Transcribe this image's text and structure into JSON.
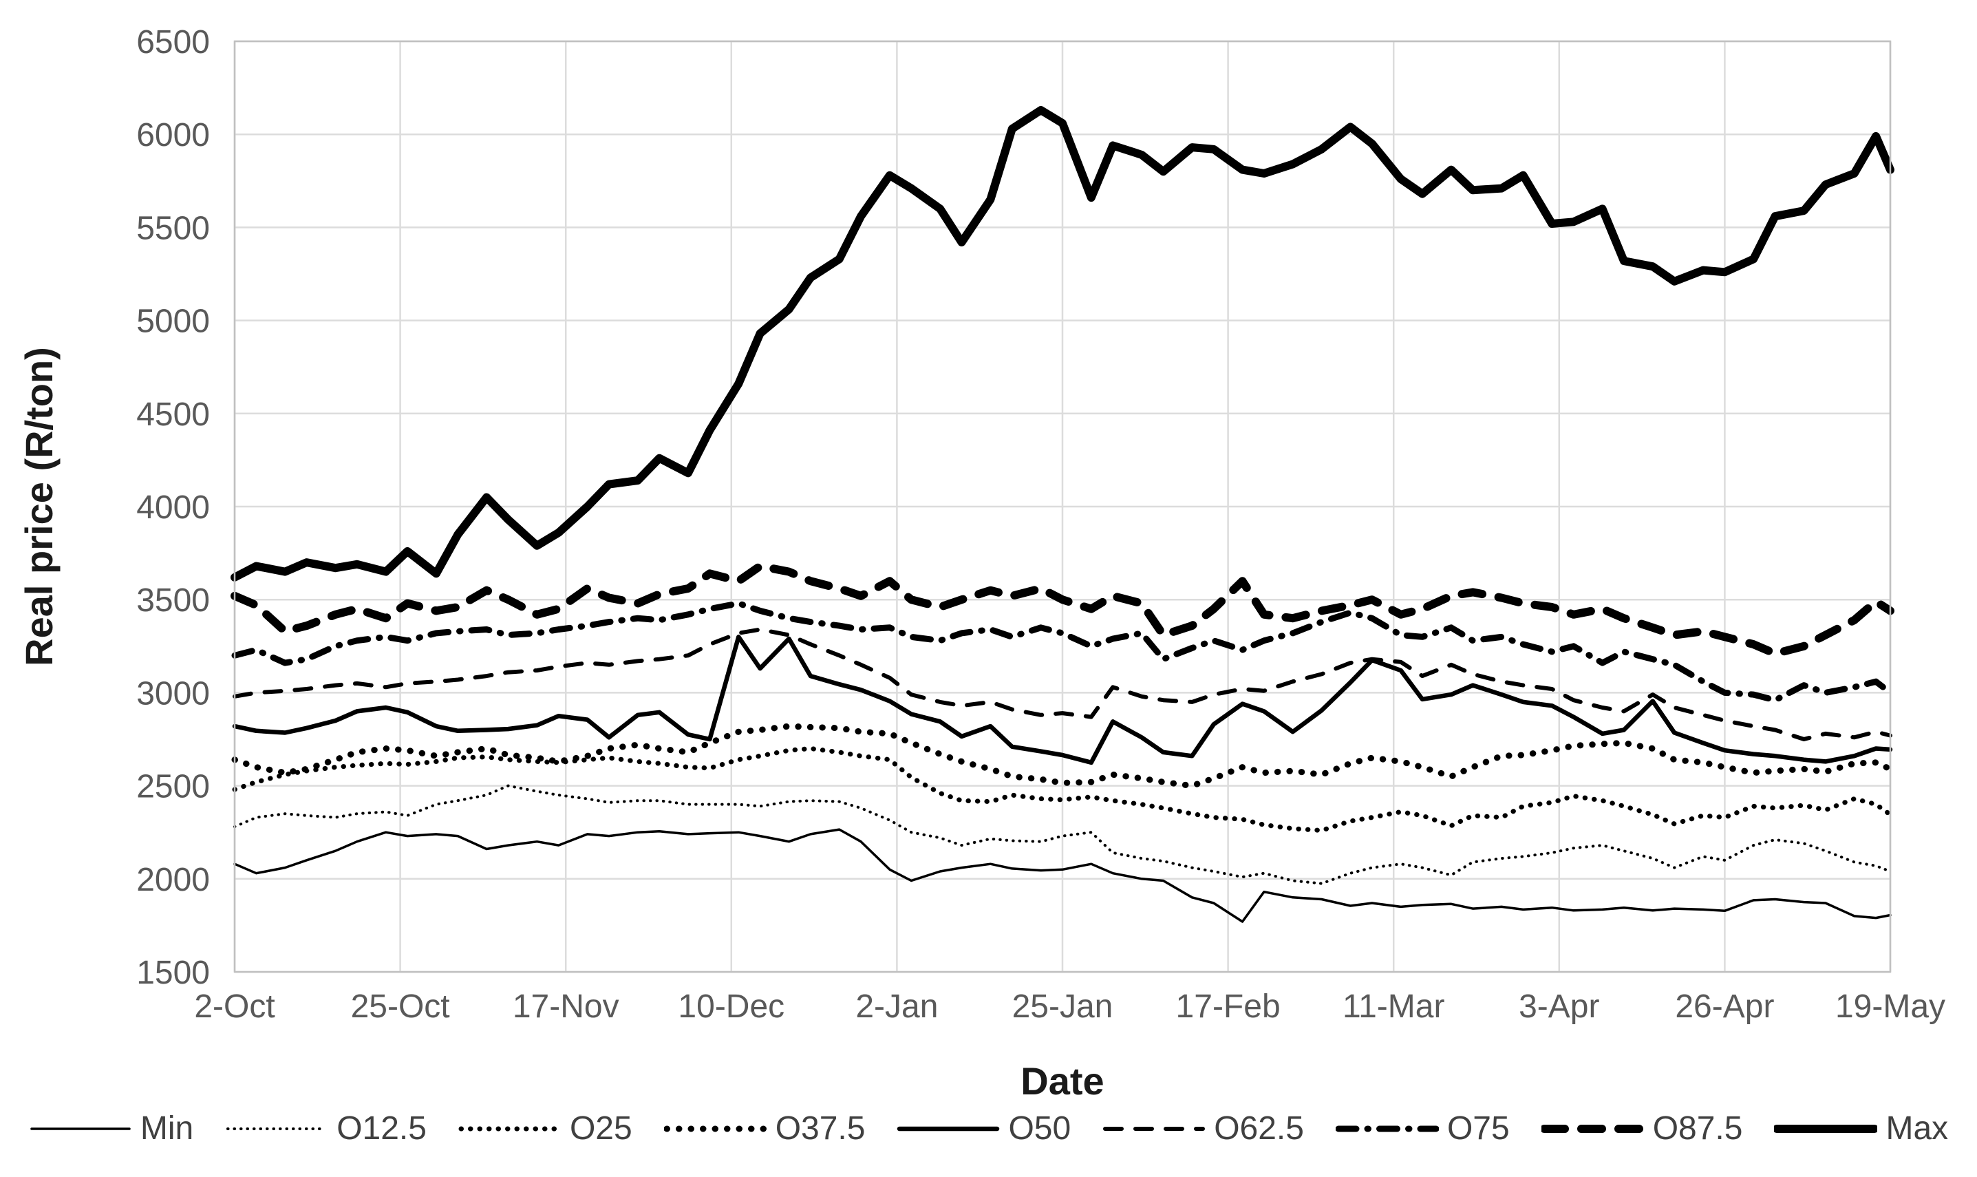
{
  "chart_data": {
    "type": "line",
    "xlabel": "Date",
    "ylabel": "Real price (R/ton)",
    "ylim": [
      1500,
      6500
    ],
    "ytick_step": 500,
    "ytick_labels": [
      "1500",
      "2000",
      "2500",
      "3000",
      "3500",
      "4000",
      "4500",
      "5000",
      "5500",
      "6000",
      "6500"
    ],
    "x_tick_labels": [
      "2-Oct",
      "25-Oct",
      "17-Nov",
      "10-Dec",
      "2-Jan",
      "25-Jan",
      "17-Feb",
      "11-Mar",
      "3-Apr",
      "26-Apr",
      "19-May"
    ],
    "x_tick_interval_days": 23,
    "x_total_days": 230,
    "grid": true,
    "legend_position": "bottom",
    "line_color": "#000000",
    "axis_text_color": "#595959",
    "title_text_color": "#1a1a1a",
    "legend_text_color": "#404040",
    "grid_color": "#dcdcdc",
    "border_color": "#c0c0c0",
    "x_dates": [
      "2-Oct",
      "5-Oct",
      "9-Oct",
      "12-Oct",
      "16-Oct",
      "19-Oct",
      "23-Oct",
      "26-Oct",
      "30-Oct",
      "2-Nov",
      "6-Nov",
      "9-Nov",
      "13-Nov",
      "16-Nov",
      "20-Nov",
      "23-Nov",
      "27-Nov",
      "30-Nov",
      "4-Dec",
      "7-Dec",
      "11-Dec",
      "14-Dec",
      "18-Dec",
      "21-Dec",
      "25-Dec",
      "28-Dec",
      "1-Jan",
      "4-Jan",
      "8-Jan",
      "11-Jan",
      "15-Jan",
      "18-Jan",
      "22-Jan",
      "25-Jan",
      "29-Jan",
      "1-Feb",
      "5-Feb",
      "8-Feb",
      "12-Feb",
      "15-Feb",
      "19-Feb",
      "22-Feb",
      "26-Feb",
      "1-Mar",
      "5-Mar",
      "8-Mar",
      "12-Mar",
      "15-Mar",
      "19-Mar",
      "22-Mar",
      "26-Mar",
      "29-Mar",
      "2-Apr",
      "5-Apr",
      "9-Apr",
      "12-Apr",
      "16-Apr",
      "19-Apr",
      "23-Apr",
      "26-Apr",
      "30-Apr",
      "3-May",
      "7-May",
      "10-May",
      "14-May",
      "17-May",
      "19-May"
    ],
    "series": [
      {
        "name": "Min",
        "values": [
          2080,
          2030,
          2060,
          2100,
          2150,
          2200,
          2250,
          2230,
          2240,
          2230,
          2160,
          2180,
          2200,
          2180,
          2240,
          2230,
          2250,
          2255,
          2240,
          2245,
          2250,
          2230,
          2200,
          2240,
          2265,
          2200,
          2050,
          1990,
          2040,
          2060,
          2080,
          2055,
          2045,
          2050,
          2080,
          2030,
          2000,
          1990,
          1900,
          1870,
          1770,
          1930,
          1900,
          1890,
          1855,
          1870,
          1850,
          1860,
          1865,
          1840,
          1850,
          1835,
          1845,
          1830,
          1835,
          1845,
          1830,
          1840,
          1835,
          1828,
          1885,
          1890,
          1875,
          1870,
          1800,
          1790,
          1805
        ]
      },
      {
        "name": "O12.5",
        "values": [
          2280,
          2330,
          2350,
          2340,
          2330,
          2350,
          2360,
          2340,
          2400,
          2420,
          2450,
          2500,
          2470,
          2450,
          2430,
          2410,
          2420,
          2420,
          2400,
          2400,
          2400,
          2390,
          2415,
          2420,
          2415,
          2380,
          2315,
          2250,
          2220,
          2180,
          2215,
          2205,
          2200,
          2230,
          2250,
          2140,
          2110,
          2095,
          2060,
          2040,
          2010,
          2030,
          1990,
          1975,
          2030,
          2060,
          2080,
          2060,
          2020,
          2090,
          2110,
          2120,
          2140,
          2165,
          2180,
          2150,
          2110,
          2060,
          2120,
          2100,
          2180,
          2210,
          2190,
          2150,
          2090,
          2070,
          2040
        ]
      },
      {
        "name": "O25",
        "values": [
          2480,
          2520,
          2560,
          2580,
          2600,
          2610,
          2620,
          2615,
          2630,
          2650,
          2655,
          2640,
          2630,
          2625,
          2640,
          2650,
          2630,
          2620,
          2600,
          2595,
          2640,
          2660,
          2690,
          2700,
          2680,
          2660,
          2640,
          2545,
          2460,
          2420,
          2415,
          2450,
          2430,
          2425,
          2440,
          2420,
          2400,
          2380,
          2350,
          2330,
          2320,
          2290,
          2270,
          2260,
          2310,
          2330,
          2360,
          2340,
          2285,
          2340,
          2330,
          2390,
          2410,
          2445,
          2420,
          2390,
          2345,
          2295,
          2340,
          2330,
          2390,
          2380,
          2395,
          2370,
          2430,
          2400,
          2345
        ]
      },
      {
        "name": "O37.5",
        "values": [
          2640,
          2600,
          2570,
          2590,
          2640,
          2680,
          2700,
          2690,
          2660,
          2680,
          2700,
          2665,
          2650,
          2630,
          2660,
          2700,
          2720,
          2700,
          2680,
          2730,
          2790,
          2800,
          2820,
          2815,
          2810,
          2790,
          2780,
          2730,
          2670,
          2630,
          2590,
          2550,
          2535,
          2515,
          2520,
          2560,
          2540,
          2520,
          2500,
          2540,
          2600,
          2570,
          2580,
          2560,
          2620,
          2650,
          2630,
          2600,
          2550,
          2600,
          2660,
          2665,
          2690,
          2715,
          2725,
          2730,
          2700,
          2640,
          2625,
          2600,
          2570,
          2580,
          2590,
          2575,
          2620,
          2625,
          2590
        ]
      },
      {
        "name": "O50",
        "values": [
          2820,
          2795,
          2785,
          2810,
          2850,
          2900,
          2920,
          2895,
          2820,
          2795,
          2800,
          2805,
          2825,
          2875,
          2855,
          2760,
          2880,
          2895,
          2775,
          2750,
          3300,
          3130,
          3290,
          3090,
          3045,
          3015,
          2955,
          2885,
          2845,
          2765,
          2820,
          2710,
          2685,
          2665,
          2625,
          2845,
          2760,
          2680,
          2660,
          2830,
          2940,
          2900,
          2790,
          2905,
          3055,
          3175,
          3120,
          2965,
          2990,
          3040,
          2990,
          2950,
          2930,
          2870,
          2780,
          2800,
          2955,
          2785,
          2730,
          2690,
          2670,
          2660,
          2640,
          2630,
          2660,
          2700,
          2695
        ]
      },
      {
        "name": "O62.5",
        "values": [
          2980,
          3000,
          3010,
          3020,
          3040,
          3050,
          3030,
          3050,
          3060,
          3070,
          3090,
          3110,
          3120,
          3140,
          3160,
          3150,
          3170,
          3180,
          3200,
          3260,
          3320,
          3340,
          3310,
          3260,
          3200,
          3150,
          3080,
          2990,
          2950,
          2930,
          2950,
          2910,
          2880,
          2890,
          2870,
          3030,
          2980,
          2960,
          2950,
          2990,
          3020,
          3010,
          3060,
          3100,
          3160,
          3180,
          3165,
          3090,
          3150,
          3100,
          3060,
          3040,
          3020,
          2960,
          2920,
          2900,
          2990,
          2920,
          2880,
          2850,
          2820,
          2800,
          2750,
          2780,
          2760,
          2790,
          2770
        ]
      },
      {
        "name": "O75",
        "values": [
          3200,
          3230,
          3160,
          3180,
          3250,
          3280,
          3300,
          3280,
          3320,
          3330,
          3340,
          3310,
          3320,
          3340,
          3360,
          3380,
          3400,
          3390,
          3420,
          3450,
          3480,
          3440,
          3400,
          3380,
          3360,
          3340,
          3350,
          3300,
          3280,
          3320,
          3340,
          3300,
          3350,
          3320,
          3250,
          3290,
          3320,
          3180,
          3240,
          3280,
          3230,
          3280,
          3320,
          3380,
          3430,
          3400,
          3310,
          3300,
          3350,
          3280,
          3300,
          3260,
          3220,
          3250,
          3160,
          3220,
          3180,
          3150,
          3060,
          3000,
          2990,
          2960,
          3040,
          3000,
          3030,
          3060,
          3000
        ]
      },
      {
        "name": "O87.5",
        "values": [
          3520,
          3470,
          3330,
          3360,
          3420,
          3450,
          3400,
          3480,
          3440,
          3460,
          3550,
          3500,
          3420,
          3450,
          3560,
          3510,
          3480,
          3530,
          3560,
          3640,
          3600,
          3680,
          3650,
          3600,
          3560,
          3520,
          3600,
          3500,
          3460,
          3500,
          3550,
          3520,
          3560,
          3500,
          3450,
          3520,
          3480,
          3310,
          3360,
          3450,
          3600,
          3420,
          3400,
          3440,
          3470,
          3500,
          3420,
          3450,
          3520,
          3540,
          3510,
          3480,
          3460,
          3420,
          3450,
          3400,
          3350,
          3310,
          3330,
          3300,
          3260,
          3210,
          3250,
          3310,
          3390,
          3490,
          3440
        ]
      },
      {
        "name": "Max",
        "values": [
          3620,
          3680,
          3650,
          3700,
          3670,
          3690,
          3650,
          3760,
          3640,
          3850,
          4050,
          3930,
          3790,
          3860,
          4000,
          4120,
          4140,
          4260,
          4180,
          4410,
          4660,
          4930,
          5060,
          5230,
          5330,
          5560,
          5780,
          5710,
          5600,
          5420,
          5650,
          6030,
          6130,
          6060,
          5660,
          5940,
          5890,
          5800,
          5930,
          5920,
          5810,
          5790,
          5840,
          5920,
          6040,
          5950,
          5760,
          5680,
          5810,
          5700,
          5710,
          5780,
          5520,
          5530,
          5600,
          5320,
          5290,
          5210,
          5270,
          5260,
          5330,
          5560,
          5590,
          5730,
          5790,
          5990,
          5810
        ]
      }
    ]
  }
}
